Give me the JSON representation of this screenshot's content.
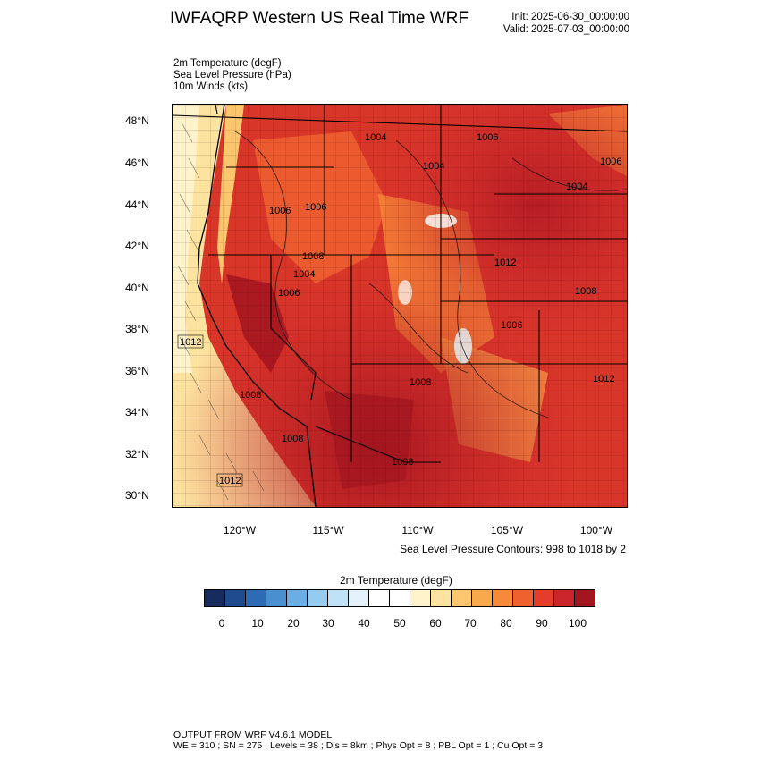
{
  "header": {
    "title": "IWFAQRP Western US Real Time WRF",
    "init": "Init: 2025-06-30_00:00:00",
    "valid": "Valid: 2025-07-03_00:00:00"
  },
  "fields": [
    "2m Temperature   (degF)",
    "Sea Level Pressure   (hPa)",
    "10m Winds   (kts)"
  ],
  "axes": {
    "lat_labels": [
      "48°N",
      "46°N",
      "44°N",
      "42°N",
      "40°N",
      "38°N",
      "36°N",
      "34°N",
      "32°N",
      "30°N"
    ],
    "lon_labels": [
      "120°W",
      "115°W",
      "110°W",
      "105°W",
      "100°W"
    ]
  },
  "pressure_labels": [
    "1004",
    "1006",
    "1004",
    "1006",
    "1006",
    "1006",
    "1004",
    "1004",
    "1008",
    "1006",
    "1012",
    "1008",
    "1006",
    "1008",
    "1012",
    "1012",
    "1008",
    "1008",
    "1008",
    "1012"
  ],
  "contour_note": "Sea Level Pressure Contours: 998 to 1018 by 2",
  "colorbar": {
    "title": "2m Temperature  (degF)",
    "colors": [
      "#162a5c",
      "#1f4a8c",
      "#2d6bb5",
      "#4a8fd0",
      "#6aaee3",
      "#94cbef",
      "#bfe2f7",
      "#e3f2fb",
      "#ffffff",
      "#ffffff",
      "#fff3cc",
      "#fde3a0",
      "#fcc66e",
      "#f9a84b",
      "#f6893a",
      "#ef6230",
      "#e43d2b",
      "#c9252b",
      "#a4161f"
    ],
    "labels": [
      "0",
      "10",
      "20",
      "30",
      "40",
      "50",
      "60",
      "70",
      "80",
      "90",
      "100"
    ]
  },
  "footer": {
    "line1": "OUTPUT FROM WRF V4.6.1 MODEL",
    "line2": "WE = 310 ; SN = 275 ; Levels = 38 ; Dis = 8km ; Phys Opt = 8 ; PBL Opt = 1 ; Cu Opt = 3"
  }
}
